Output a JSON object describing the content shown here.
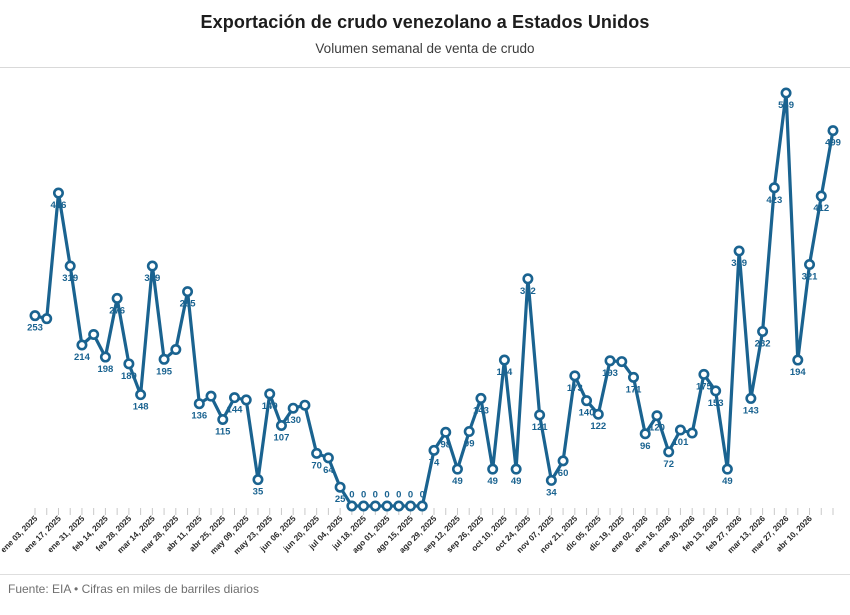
{
  "header": {
    "title": "Exportación de crudo venezolano a Estados Unidos",
    "subtitle": "Volumen semanal de venta de crudo"
  },
  "footer": {
    "source": "Fuente: EIA • Cifras en miles de barriles diarios"
  },
  "colors": {
    "line": "#1a6390",
    "marker_fill": "#ffffff",
    "value_label": "#1a6390",
    "tick": "#c9c9c9",
    "axis_label": "#2b2b2b",
    "divider": "#d9d9d9",
    "footer_text": "#6f6f6f"
  },
  "chart_data": {
    "type": "line",
    "title": "Exportación de crudo venezolano a Estados Unidos",
    "subtitle": "Volumen semanal de venta de crudo",
    "unit": "miles de barriles diarios",
    "source": "EIA",
    "grid": false,
    "legend": "none",
    "y_axis_visible": false,
    "ylim": [
      0,
      560
    ],
    "x_tick_step": 2,
    "x_tick_labels": [
      "ene 03, 2025",
      "ene 17, 2025",
      "ene 31, 2025",
      "feb 14, 2025",
      "feb 28, 2025",
      "mar 14, 2025",
      "mar 28, 2025",
      "abr 11, 2025",
      "abr 25, 2025",
      "may 09, 2025",
      "may 23, 2025",
      "jun 06, 2025",
      "jun 20, 2025",
      "jul 04, 2025",
      "jul 18, 2025",
      "ago 01, 2025",
      "ago 15, 2025",
      "ago 29, 2025",
      "sep 12, 2025",
      "sep 26, 2025",
      "oct 10, 2025",
      "oct 24, 2025",
      "nov 07, 2025",
      "nov 21, 2025",
      "dic 05, 2025",
      "dic 19, 2025",
      "ene 02, 2026",
      "ene 16, 2026",
      "ene 30, 2026",
      "feb 13, 2026",
      "feb 27, 2026",
      "mar 13, 2026",
      "mar 27, 2026",
      "abr 10, 2026"
    ],
    "values": [
      253,
      249,
      416,
      319,
      214,
      228,
      198,
      276,
      189,
      148,
      319,
      195,
      208,
      285,
      136,
      146,
      115,
      144,
      141,
      35,
      149,
      107,
      130,
      134,
      70,
      64,
      25,
      0,
      0,
      0,
      0,
      0,
      0,
      0,
      74,
      98,
      49,
      99,
      143,
      49,
      194,
      49,
      302,
      121,
      34,
      60,
      173,
      140,
      122,
      193,
      192,
      171,
      96,
      120,
      72,
      101,
      97,
      175,
      153,
      49,
      339,
      143,
      232,
      423,
      549,
      194,
      321,
      412,
      499
    ],
    "hidden_value_label_indices": [
      1,
      5,
      12,
      15,
      18,
      23,
      50,
      56
    ]
  }
}
